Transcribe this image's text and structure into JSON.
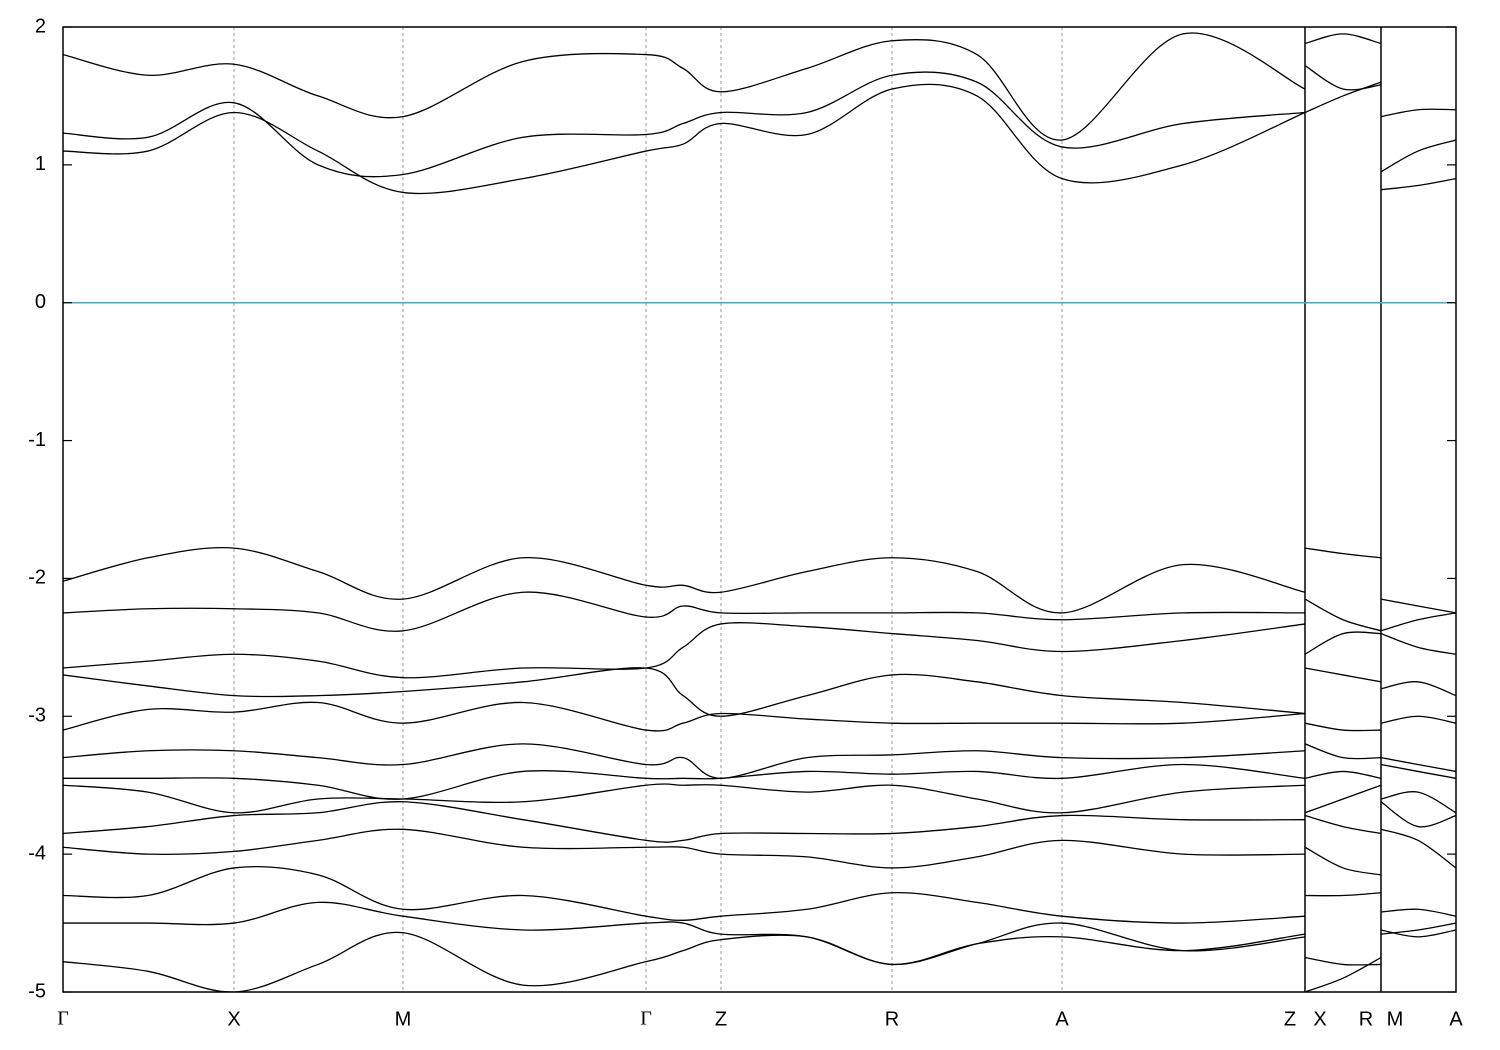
{
  "chart_data": {
    "type": "line",
    "xlim": [
      0,
      1393
    ],
    "ylim": [
      -5,
      2
    ],
    "yticks": [
      -5,
      -4,
      -3,
      -2,
      -1,
      0,
      1,
      2
    ],
    "xticks": [
      {
        "value": 0,
        "label": "Γ"
      },
      {
        "value": 171,
        "label": "X"
      },
      {
        "value": 340,
        "label": "M"
      },
      {
        "value": 583,
        "label": "Γ"
      },
      {
        "value": 658,
        "label": "Z"
      },
      {
        "value": 829,
        "label": "R"
      },
      {
        "value": 999,
        "label": "A"
      },
      {
        "value": 1227,
        "label": "Z"
      },
      {
        "value": 1257,
        "label": "X"
      },
      {
        "value": 1303,
        "label": "R"
      },
      {
        "value": 1332,
        "label": "M"
      },
      {
        "value": 1393,
        "label": "A"
      }
    ],
    "breaks": [
      1242,
      1318
    ],
    "grid": true,
    "fermi_level": 0,
    "fermi_color": "#4aa8c4",
    "x": [
      0,
      85,
      171,
      255,
      340,
      460,
      583,
      620,
      658,
      744,
      829,
      914,
      999,
      1120,
      1242,
      1242,
      1242,
      1280,
      1318,
      1318,
      1318,
      1355,
      1393
    ],
    "series": [
      {
        "color": "#000000",
        "values": [
          1.1,
          1.1,
          1.38,
          1.1,
          0.8,
          0.9,
          1.1,
          1.15,
          1.3,
          1.22,
          1.55,
          1.5,
          0.9,
          1.0,
          1.38,
          null,
          1.38,
          1.5,
          1.6,
          null,
          0.82,
          0.85,
          0.9
        ]
      },
      {
        "color": "#000000",
        "values": [
          1.23,
          1.2,
          1.45,
          1.0,
          0.93,
          1.2,
          1.22,
          1.3,
          1.38,
          1.38,
          1.65,
          1.6,
          1.13,
          1.3,
          1.38,
          null,
          1.72,
          1.55,
          1.58,
          null,
          0.95,
          1.1,
          1.18
        ]
      },
      {
        "color": "#000000",
        "values": [
          1.8,
          1.65,
          1.73,
          1.5,
          1.35,
          1.75,
          1.8,
          1.7,
          1.53,
          1.7,
          1.9,
          1.8,
          1.18,
          1.95,
          1.55,
          null,
          1.88,
          1.95,
          1.88,
          null,
          1.35,
          1.4,
          1.4
        ]
      },
      {
        "color": "#000000",
        "values": [
          -2.02,
          -1.85,
          -1.78,
          -1.95,
          -2.15,
          -1.85,
          -2.05,
          -2.05,
          -2.1,
          -1.95,
          -1.85,
          -1.95,
          -2.25,
          -1.9,
          -2.1,
          null,
          -1.78,
          -1.82,
          -1.85,
          null,
          -2.15,
          -2.2,
          -2.25
        ]
      },
      {
        "color": "#000000",
        "values": [
          -2.25,
          -2.22,
          -2.22,
          -2.25,
          -2.38,
          -2.1,
          -2.28,
          -2.2,
          -2.25,
          -2.25,
          -2.25,
          -2.25,
          -2.3,
          -2.25,
          -2.25,
          null,
          -2.15,
          -2.3,
          -2.38,
          null,
          -2.38,
          -2.3,
          -2.25
        ]
      },
      {
        "color": "#000000",
        "values": [
          -2.65,
          -2.6,
          -2.55,
          -2.6,
          -2.72,
          -2.65,
          -2.65,
          -2.5,
          -2.33,
          -2.35,
          -2.4,
          -2.45,
          -2.53,
          -2.45,
          -2.33,
          null,
          -2.55,
          -2.4,
          -2.4,
          null,
          -2.4,
          -2.5,
          -2.55
        ]
      },
      {
        "color": "#000000",
        "values": [
          -2.7,
          -2.78,
          -2.85,
          -2.85,
          -2.82,
          -2.75,
          -2.65,
          -2.85,
          -3.0,
          -2.85,
          -2.7,
          -2.75,
          -2.85,
          -2.9,
          -2.98,
          null,
          -2.65,
          -2.7,
          -2.75,
          null,
          -2.8,
          -2.75,
          -2.85
        ]
      },
      {
        "color": "#000000",
        "values": [
          -3.1,
          -2.95,
          -2.97,
          -2.9,
          -3.05,
          -2.9,
          -3.1,
          -3.05,
          -2.98,
          -3.02,
          -3.05,
          -3.05,
          -3.05,
          -3.05,
          -2.98,
          null,
          -3.05,
          -3.1,
          -3.1,
          null,
          -3.05,
          -3.0,
          -3.05
        ]
      },
      {
        "color": "#000000",
        "values": [
          -3.3,
          -3.25,
          -3.25,
          -3.3,
          -3.35,
          -3.2,
          -3.35,
          -3.3,
          -3.45,
          -3.3,
          -3.28,
          -3.25,
          -3.3,
          -3.3,
          -3.25,
          null,
          -3.2,
          -3.3,
          -3.3,
          null,
          -3.3,
          -3.35,
          -3.4
        ]
      },
      {
        "color": "#000000",
        "values": [
          -3.45,
          -3.45,
          -3.45,
          -3.5,
          -3.6,
          -3.4,
          -3.45,
          -3.45,
          -3.45,
          -3.4,
          -3.42,
          -3.4,
          -3.45,
          -3.35,
          -3.45,
          null,
          -3.45,
          -3.4,
          -3.45,
          null,
          -3.35,
          -3.4,
          -3.45
        ]
      },
      {
        "color": "#000000",
        "values": [
          -3.5,
          -3.55,
          -3.7,
          -3.6,
          -3.6,
          -3.62,
          -3.5,
          -3.5,
          -3.5,
          -3.55,
          -3.5,
          -3.6,
          -3.7,
          -3.55,
          -3.5,
          null,
          -3.7,
          -3.6,
          -3.5,
          null,
          -3.6,
          -3.55,
          -3.7
        ]
      },
      {
        "color": "#000000",
        "values": [
          -3.85,
          -3.8,
          -3.72,
          -3.7,
          -3.62,
          -3.75,
          -3.9,
          -3.9,
          -3.85,
          -3.85,
          -3.85,
          -3.8,
          -3.72,
          -3.75,
          -3.75,
          null,
          -3.72,
          -3.8,
          -3.85,
          null,
          -3.62,
          -3.8,
          -3.72
        ]
      },
      {
        "color": "#000000",
        "values": [
          -3.95,
          -4.0,
          -3.98,
          -3.9,
          -3.82,
          -3.95,
          -3.95,
          -3.95,
          -4.0,
          -4.02,
          -4.1,
          -4.02,
          -3.9,
          -4.0,
          -4.0,
          null,
          -3.95,
          -4.1,
          -4.15,
          null,
          -3.82,
          -3.9,
          -4.1
        ]
      },
      {
        "color": "#000000",
        "values": [
          -4.3,
          -4.3,
          -4.1,
          -4.15,
          -4.4,
          -4.3,
          -4.45,
          -4.48,
          -4.45,
          -4.4,
          -4.28,
          -4.35,
          -4.45,
          -4.5,
          -4.45,
          null,
          -4.3,
          -4.3,
          -4.28,
          null,
          -4.42,
          -4.4,
          -4.45
        ]
      },
      {
        "color": "#000000",
        "values": [
          -4.5,
          -4.5,
          -4.5,
          -4.35,
          -4.45,
          -4.55,
          -4.5,
          -4.5,
          -4.58,
          -4.6,
          -4.8,
          -4.65,
          -4.5,
          -4.7,
          -4.6,
          null,
          -4.75,
          -4.8,
          -4.8,
          null,
          -4.58,
          -4.55,
          -4.5
        ]
      },
      {
        "color": "#000000",
        "values": [
          -4.78,
          -4.85,
          -5.0,
          -4.8,
          -4.57,
          -4.95,
          -4.78,
          -4.7,
          -4.62,
          -4.6,
          -4.8,
          -4.65,
          -4.6,
          -4.7,
          -4.58,
          null,
          -5.0,
          -4.9,
          -4.75,
          null,
          -4.55,
          -4.6,
          -4.55
        ]
      }
    ]
  }
}
